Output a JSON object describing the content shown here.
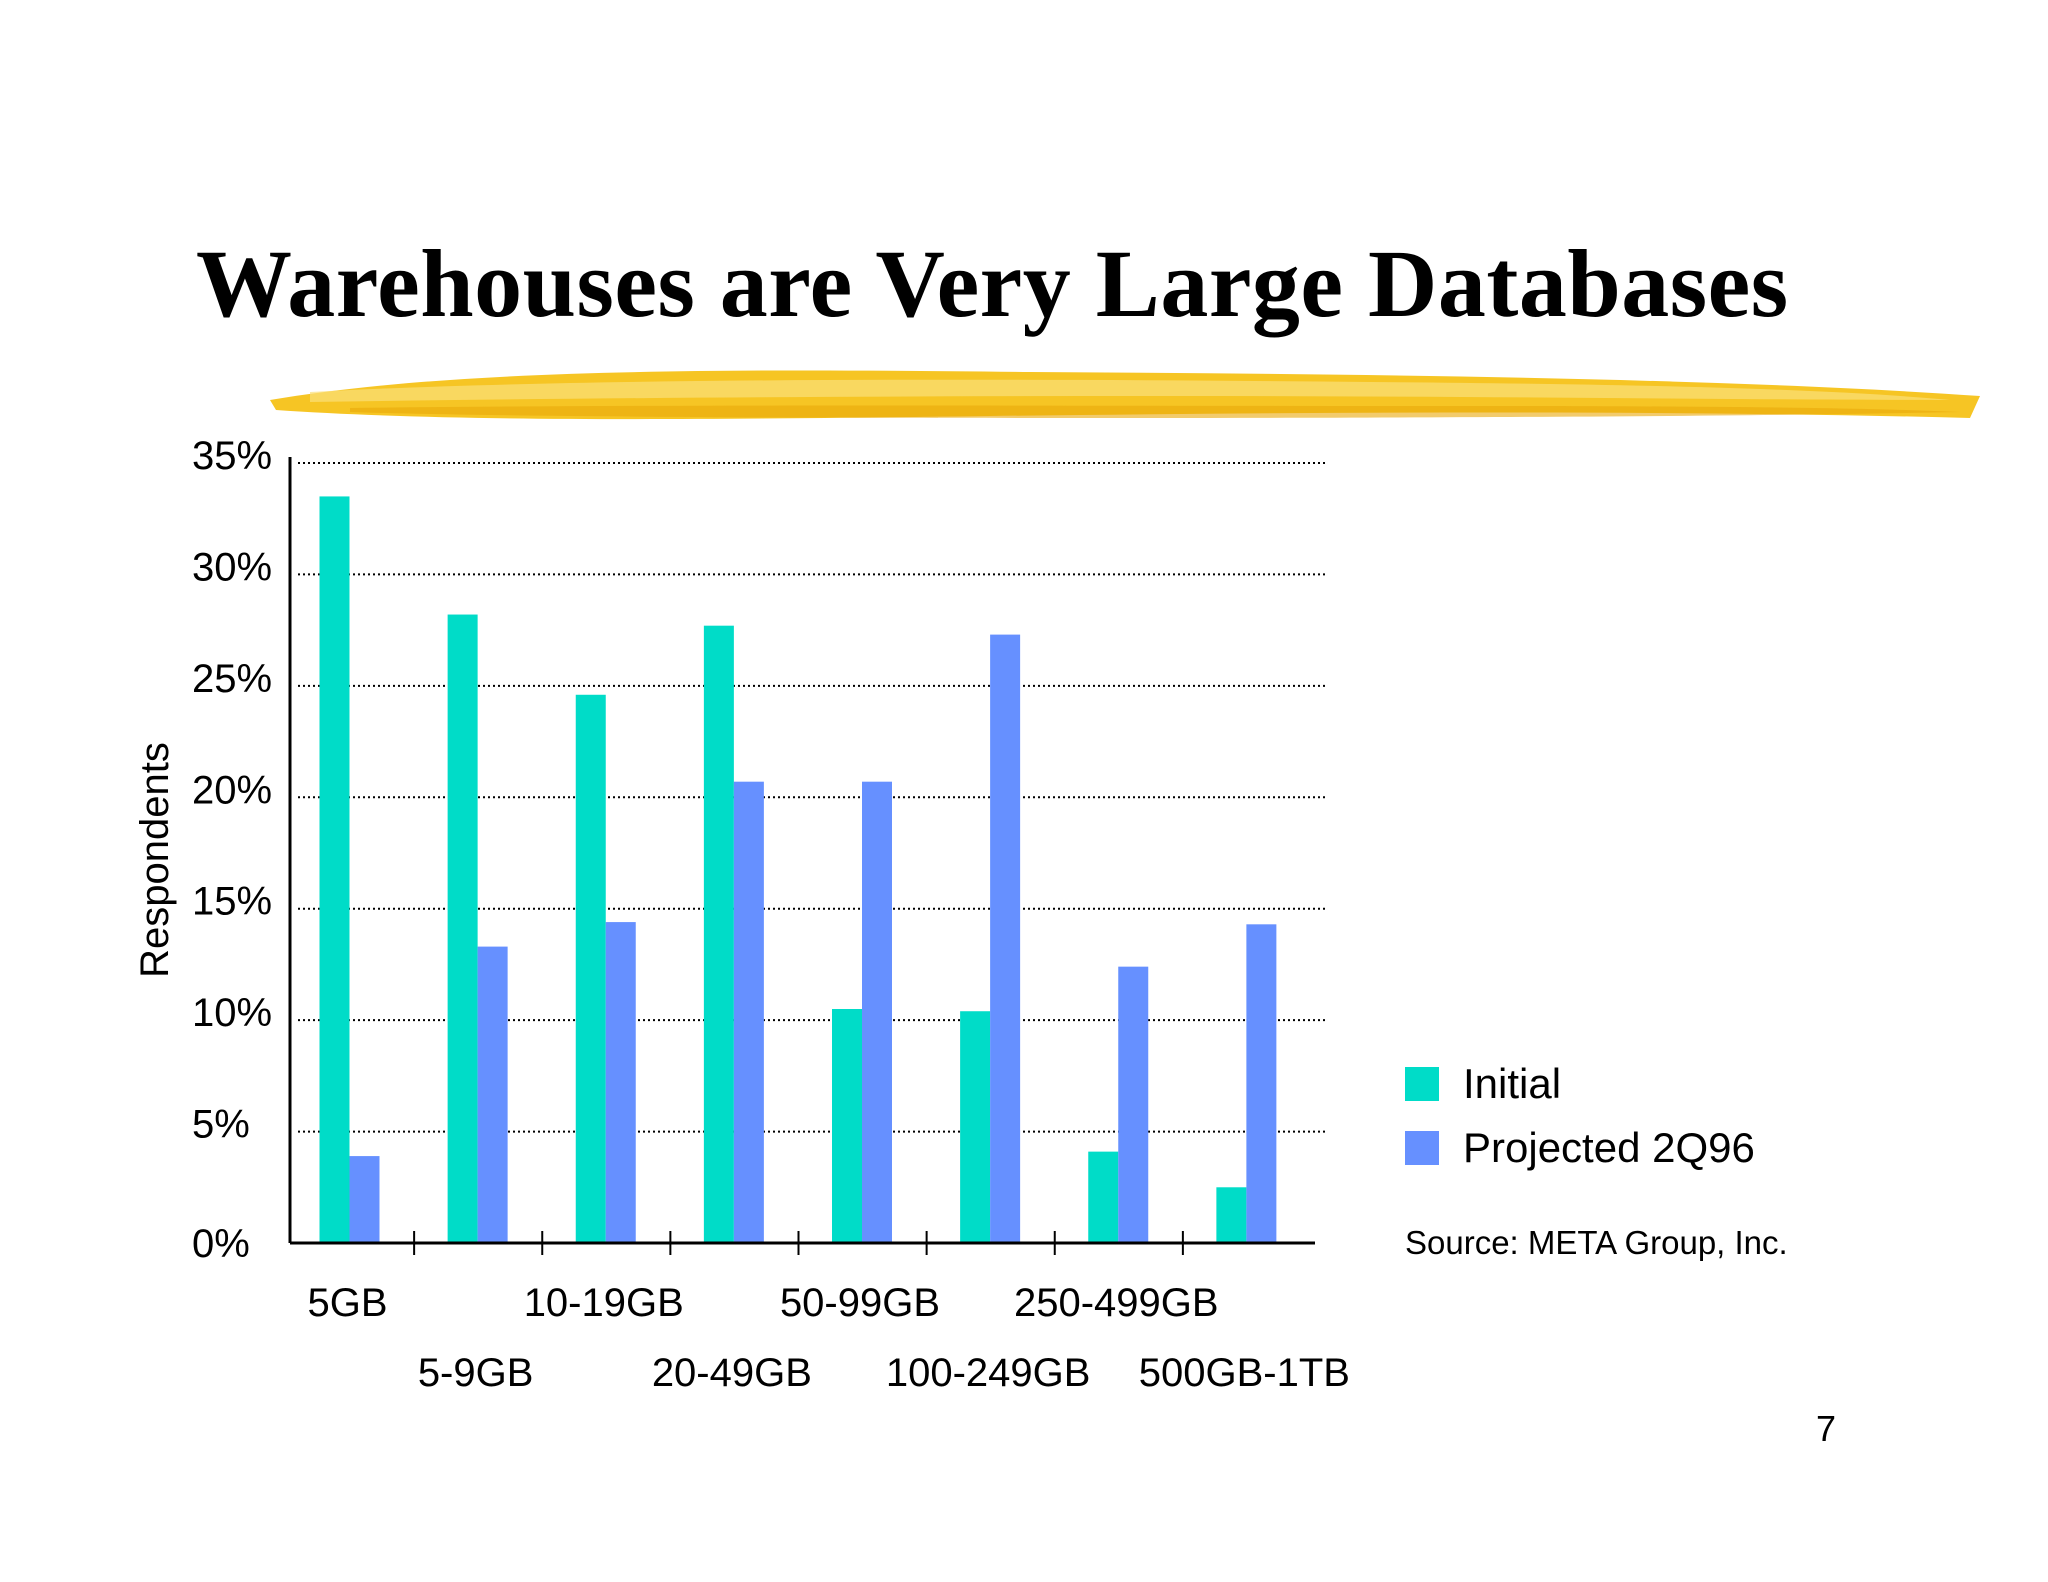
{
  "slide": {
    "title": "Warehouses are Very Large Databases",
    "page_number": "7",
    "source": "Source: META Group, Inc.",
    "brush_color": "#f5c218"
  },
  "chart_data": {
    "type": "bar",
    "title": "",
    "ylabel": "Respondents",
    "xlabel": "",
    "ylim": [
      0,
      35
    ],
    "yticks": [
      "0%",
      "5%",
      "10%",
      "15%",
      "20%",
      "25%",
      "30%",
      "35%"
    ],
    "categories": [
      "5GB",
      "5-9GB",
      "10-19GB",
      "20-49GB",
      "50-99GB",
      "100-249GB",
      "250-499GB",
      "500GB-1TB"
    ],
    "series": [
      {
        "name": "Initial",
        "color": "#00dcc8",
        "values": [
          33.5,
          28.2,
          24.6,
          27.7,
          10.5,
          10.4,
          4.1,
          2.5
        ]
      },
      {
        "name": "Projected 2Q96",
        "color": "#6690ff",
        "values": [
          3.9,
          13.3,
          14.4,
          20.7,
          20.7,
          27.3,
          12.4,
          14.3
        ]
      }
    ],
    "grid": true,
    "legend": "right"
  }
}
